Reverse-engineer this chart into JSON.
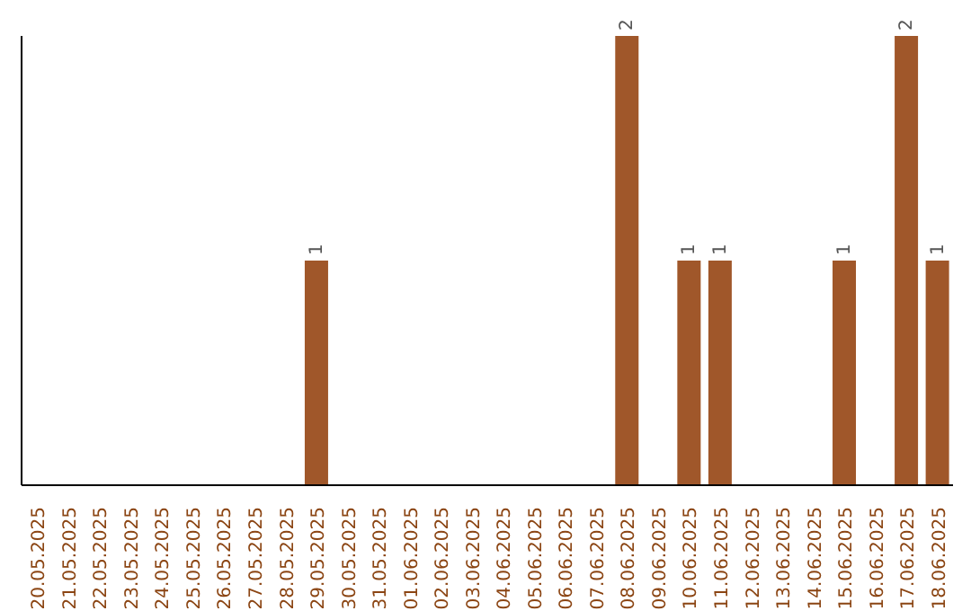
{
  "chart_data": {
    "type": "bar",
    "categories": [
      "20.05.2025",
      "21.05.2025",
      "22.05.2025",
      "23.05.2025",
      "24.05.2025",
      "25.05.2025",
      "26.05.2025",
      "27.05.2025",
      "28.05.2025",
      "29.05.2025",
      "30.05.2025",
      "31.05.2025",
      "01.06.2025",
      "02.06.2025",
      "03.06.2025",
      "04.06.2025",
      "05.06.2025",
      "06.06.2025",
      "07.06.2025",
      "08.06.2025",
      "09.06.2025",
      "10.06.2025",
      "11.06.2025",
      "12.06.2025",
      "13.06.2025",
      "14.06.2025",
      "15.06.2025",
      "16.06.2025",
      "17.06.2025",
      "18.06.2025"
    ],
    "values": [
      0,
      0,
      0,
      0,
      0,
      0,
      0,
      0,
      0,
      1,
      0,
      0,
      0,
      0,
      0,
      0,
      0,
      0,
      0,
      2,
      0,
      1,
      1,
      0,
      0,
      0,
      1,
      0,
      2,
      1
    ],
    "value_labels": [
      null,
      null,
      null,
      null,
      null,
      null,
      null,
      null,
      null,
      "1",
      null,
      null,
      null,
      null,
      null,
      null,
      null,
      null,
      null,
      "2",
      null,
      "1",
      "1",
      null,
      null,
      null,
      "1",
      null,
      "2",
      "1"
    ],
    "color": "#a0572a",
    "grid": false,
    "legend": false
  }
}
